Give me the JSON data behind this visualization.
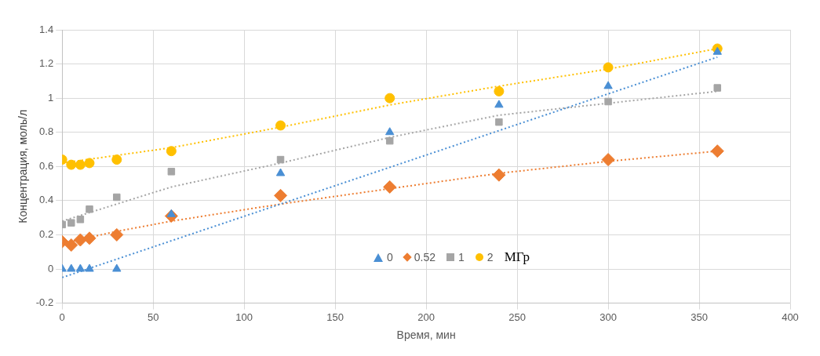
{
  "chart_data": {
    "type": "scatter",
    "xlabel": "Время, мин",
    "ylabel": "Концентрация, моль/л",
    "legend_title": "МГр",
    "x": [
      0,
      5,
      10,
      15,
      30,
      60,
      120,
      180,
      240,
      300,
      360
    ],
    "series": [
      {
        "name": "0",
        "color": "#4a8fd4",
        "marker": "triangle",
        "values": [
          0,
          0,
          0,
          0,
          0,
          0.32,
          0.56,
          0.8,
          0.96,
          1.07,
          1.27
        ]
      },
      {
        "name": "0.52",
        "color": "#ed7d31",
        "marker": "diamond",
        "values": [
          0.16,
          0.14,
          0.17,
          0.18,
          0.2,
          0.31,
          0.43,
          0.48,
          0.55,
          0.64,
          0.69
        ]
      },
      {
        "name": "1",
        "color": "#a5a5a5",
        "marker": "square",
        "values": [
          0.26,
          0.27,
          0.29,
          0.35,
          0.42,
          0.57,
          0.64,
          0.75,
          0.86,
          0.98,
          1.06
        ]
      },
      {
        "name": "2",
        "color": "#ffc000",
        "marker": "circle",
        "values": [
          0.64,
          0.61,
          0.61,
          0.62,
          0.64,
          0.69,
          0.84,
          1.0,
          1.04,
          1.18,
          1.29
        ]
      },
      {
        "type": "line",
        "color": "#4a8fd4",
        "marker": "none",
        "line_style": "dotted",
        "x": [
          0,
          360
        ],
        "values": [
          -0.05,
          1.24
        ]
      },
      {
        "type": "line",
        "color": "#ed7d31",
        "marker": "none",
        "line_style": "dotted",
        "x": [
          0,
          30,
          60,
          120,
          180,
          240,
          300,
          360
        ],
        "values": [
          0.15,
          0.22,
          0.28,
          0.38,
          0.47,
          0.56,
          0.63,
          0.69
        ]
      },
      {
        "type": "line",
        "color": "#a5a5a5",
        "marker": "none",
        "line_style": "dotted",
        "x": [
          0,
          30,
          60,
          120,
          180,
          240,
          300,
          360
        ],
        "values": [
          0.28,
          0.38,
          0.48,
          0.62,
          0.77,
          0.9,
          0.97,
          1.04
        ]
      },
      {
        "type": "line",
        "color": "#ffc000",
        "marker": "none",
        "line_style": "dotted",
        "x": [
          0,
          60,
          120,
          180,
          240,
          300,
          360
        ],
        "values": [
          0.62,
          0.71,
          0.83,
          0.96,
          1.07,
          1.17,
          1.29
        ]
      }
    ],
    "xlim": [
      0,
      400
    ],
    "xticks": [
      0,
      50,
      100,
      150,
      200,
      250,
      300,
      350,
      400
    ],
    "ylim": [
      -0.2,
      1.4
    ],
    "yticks": [
      -0.2,
      0,
      0.2,
      0.4,
      0.6,
      0.8,
      1,
      1.2,
      1.4
    ],
    "grid": true,
    "legend": "bottom"
  }
}
